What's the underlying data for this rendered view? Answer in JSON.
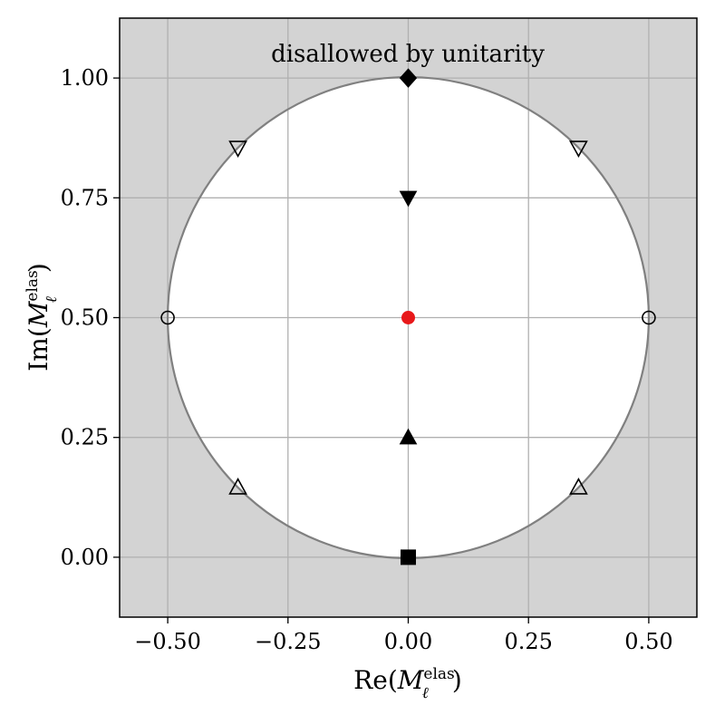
{
  "chart_data": {
    "type": "scatter",
    "xlabel": "Re(M_ℓ^elas)",
    "ylabel": "Im(M_ℓ^elas)",
    "xlim": [
      -0.6,
      0.6
    ],
    "ylim": [
      -0.125,
      1.125
    ],
    "x_ticks": [
      "−0.50",
      "−0.25",
      "0.00",
      "0.25",
      "0.50"
    ],
    "y_ticks": [
      "0.00",
      "0.25",
      "0.50",
      "0.75",
      "1.00"
    ],
    "grid": true,
    "annotation": "disallowed by unitarity",
    "region": {
      "shape": "circle",
      "center": [
        0,
        0.5
      ],
      "radius": 0.5,
      "inside_color": "#ffffff",
      "outside_color": "#d3d3d3",
      "boundary_color": "#808080"
    },
    "points": [
      {
        "marker": "diamond",
        "fill": "filled",
        "x": 0.0,
        "y": 1.0,
        "color": "#000000"
      },
      {
        "marker": "triangle-down",
        "fill": "filled",
        "x": 0.0,
        "y": 0.75,
        "color": "#000000"
      },
      {
        "marker": "triangle-down",
        "fill": "hollow",
        "x": -0.354,
        "y": 0.854,
        "color": "#000000"
      },
      {
        "marker": "triangle-down",
        "fill": "hollow",
        "x": 0.354,
        "y": 0.854,
        "color": "#000000"
      },
      {
        "marker": "circle",
        "fill": "hollow",
        "x": -0.5,
        "y": 0.5,
        "color": "#000000"
      },
      {
        "marker": "circle",
        "fill": "hollow",
        "x": 0.5,
        "y": 0.5,
        "color": "#000000"
      },
      {
        "marker": "circle",
        "fill": "filled",
        "x": 0.0,
        "y": 0.5,
        "color": "#e8181a"
      },
      {
        "marker": "triangle-up",
        "fill": "filled",
        "x": 0.0,
        "y": 0.25,
        "color": "#000000"
      },
      {
        "marker": "triangle-up",
        "fill": "hollow",
        "x": -0.354,
        "y": 0.146,
        "color": "#000000"
      },
      {
        "marker": "triangle-up",
        "fill": "hollow",
        "x": 0.354,
        "y": 0.146,
        "color": "#000000"
      },
      {
        "marker": "square",
        "fill": "filled",
        "x": 0.0,
        "y": 0.0,
        "color": "#000000"
      }
    ]
  }
}
